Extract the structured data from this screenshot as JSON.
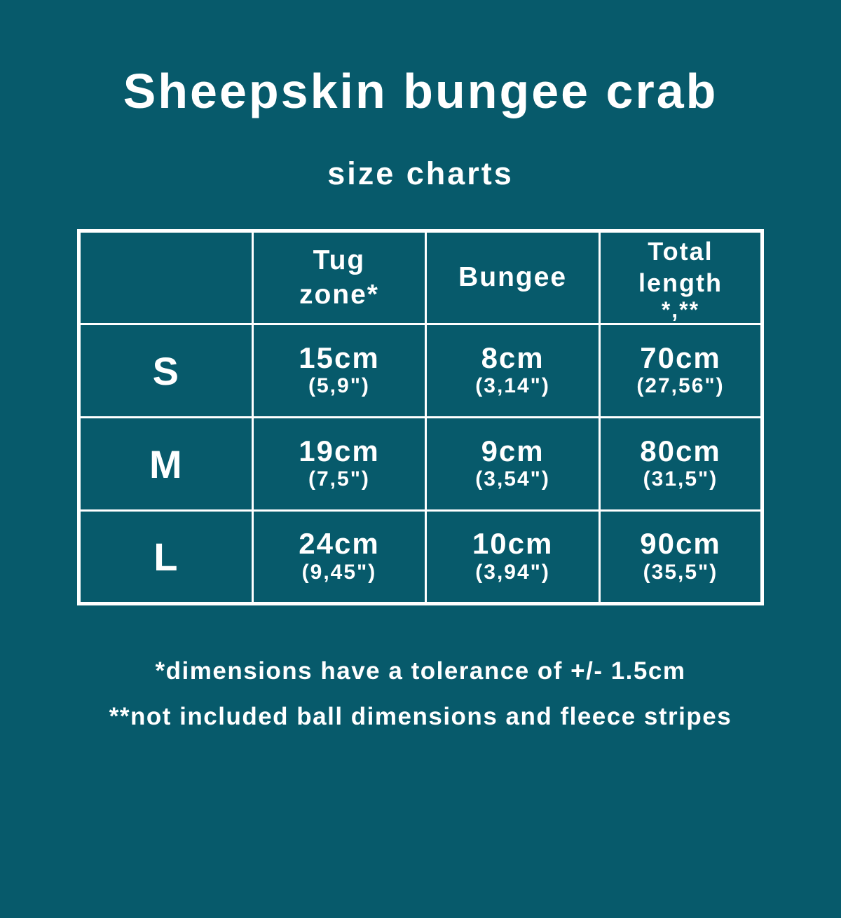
{
  "title": "Sheepskin bungee crab",
  "subtitle": "size charts",
  "colors": {
    "background": "#075a6b",
    "text": "#ffffff",
    "table_border": "#ffffff"
  },
  "table": {
    "headers": {
      "size": "",
      "tug_zone": "Tug\nzone*",
      "bungee": "Bungee",
      "total_length": "Total\nlength",
      "total_length_notes": "*,**"
    },
    "rows": [
      {
        "size": "S",
        "tug": "15cm",
        "tug_in": "(5,9\")",
        "bungee": "8cm",
        "bungee_in": "(3,14\")",
        "total": "70cm",
        "total_in": "(27,56\")"
      },
      {
        "size": "M",
        "tug": "19cm",
        "tug_in": "(7,5\")",
        "bungee": "9cm",
        "bungee_in": "(3,54\")",
        "total": "80cm",
        "total_in": "(31,5\")"
      },
      {
        "size": "L",
        "tug": "24cm",
        "tug_in": "(9,45\")",
        "bungee": "10cm",
        "bungee_in": "(3,94\")",
        "total": "90cm",
        "total_in": "(35,5\")"
      }
    ]
  },
  "footnotes": {
    "line1": "*dimensions have a tolerance of +/- 1.5cm",
    "line2": "**not included ball dimensions and fleece stripes"
  },
  "chart_data": {
    "type": "table",
    "title": "Sheepskin bungee crab",
    "subtitle": "size charts",
    "columns": [
      "",
      "Tug zone*",
      "Bungee",
      "Total length *,**"
    ],
    "rows": [
      [
        "S",
        "15cm (5,9\")",
        "8cm (3,14\")",
        "70cm (27,56\")"
      ],
      [
        "M",
        "19cm (7,5\")",
        "9cm (3,54\")",
        "80cm (31,5\")"
      ],
      [
        "L",
        "24cm (9,45\")",
        "10cm (3,94\")",
        "90cm (35,5\")"
      ]
    ],
    "units": {
      "primary": "cm",
      "secondary": "inches"
    },
    "annotations": [
      "*dimensions have a tolerance of +/- 1.5cm",
      "**not included ball dimensions and fleece stripes"
    ]
  }
}
